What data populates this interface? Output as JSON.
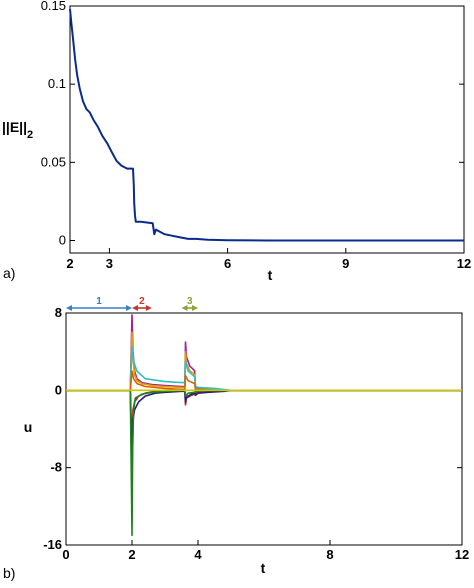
{
  "chart_data": [
    {
      "panel_label": "a)",
      "type": "line",
      "xlabel": "t",
      "ylabel_base": "||E||",
      "ylabel_sub": "2",
      "xlim": [
        2,
        12
      ],
      "ylim": [
        -0.008,
        0.15
      ],
      "xticks": [
        2,
        3,
        6,
        9,
        12
      ],
      "xtick_labels": [
        "2",
        "3",
        "6",
        "9",
        "12"
      ],
      "yticks": [
        0,
        0.05,
        0.1,
        0.15
      ],
      "ytick_labels": [
        "0",
        "0.05",
        "0.1",
        "0.15"
      ],
      "color": "#0a2a8c",
      "series": [
        {
          "x": [
            2.0,
            2.03,
            2.08,
            2.13,
            2.18,
            2.25,
            2.33,
            2.42,
            2.5,
            2.6,
            2.7,
            2.82,
            2.95,
            3.05,
            3.18,
            3.3,
            3.45,
            3.6,
            3.62,
            3.63,
            3.65,
            3.67,
            3.7,
            3.8,
            4.1,
            4.14,
            4.18,
            4.25,
            4.4,
            4.6,
            4.8,
            5.0,
            5.2,
            5.5,
            6.0,
            7.0,
            8.0,
            9.0,
            10.0,
            11.0,
            12.0
          ],
          "y": [
            0.148,
            0.14,
            0.128,
            0.116,
            0.106,
            0.097,
            0.089,
            0.084,
            0.082,
            0.077,
            0.073,
            0.067,
            0.062,
            0.057,
            0.051,
            0.048,
            0.046,
            0.046,
            0.035,
            0.024,
            0.016,
            0.012,
            0.012,
            0.012,
            0.011,
            0.004,
            0.007,
            0.006,
            0.004,
            0.003,
            0.002,
            0.001,
            0.001,
            0.0005,
            0.0002,
            0.0,
            0.0,
            0.0,
            0.0,
            0.0,
            0.0
          ]
        }
      ]
    },
    {
      "panel_label": "b)",
      "type": "line",
      "xlabel": "t",
      "ylabel": "u",
      "xlim": [
        0,
        12
      ],
      "ylim": [
        -16,
        8
      ],
      "xticks": [
        0,
        2,
        4,
        8,
        12
      ],
      "xtick_labels": [
        "0",
        "2",
        "4",
        "8",
        "12"
      ],
      "yticks": [
        8,
        0,
        -8,
        -16
      ],
      "ytick_labels": [
        "8",
        "0",
        "-8",
        "-16"
      ],
      "intervals": [
        {
          "label": "1",
          "from": 0.0,
          "to": 2.0,
          "color": "#3a7fc4"
        },
        {
          "label": "2",
          "from": 2.0,
          "to": 2.6,
          "color": "#c0392b"
        },
        {
          "label": "3",
          "from": 3.5,
          "to": 4.0,
          "color": "#8aa33a"
        }
      ],
      "baseline_color": "#c8c800",
      "series": [
        {
          "color": "#a020a0",
          "x": [
            0,
            1.95,
            2.0,
            2.03,
            2.08,
            2.15,
            2.3,
            2.6,
            3.0,
            3.5,
            3.6,
            3.62,
            3.65,
            3.75,
            3.85,
            3.9,
            3.92,
            4.0,
            4.3,
            4.8,
            5.0,
            12
          ],
          "y": [
            0,
            0,
            7.8,
            4.0,
            2.0,
            1.2,
            0.8,
            0.6,
            0.5,
            0.4,
            0.4,
            5.0,
            3.5,
            2.5,
            2.2,
            2.0,
            0.3,
            0.2,
            0.1,
            0.0,
            0.0,
            0.0
          ]
        },
        {
          "color": "#e0a000",
          "x": [
            0,
            1.95,
            2.0,
            2.03,
            2.08,
            2.15,
            2.3,
            2.6,
            3.0,
            3.5,
            3.6,
            3.62,
            3.65,
            3.75,
            3.85,
            3.9,
            3.92,
            4.0,
            4.3,
            4.8,
            5.0,
            12
          ],
          "y": [
            0,
            0,
            6.0,
            3.2,
            1.6,
            1.0,
            0.7,
            0.5,
            0.4,
            0.3,
            0.3,
            4.0,
            2.8,
            2.0,
            1.8,
            1.6,
            0.2,
            0.1,
            0.1,
            0.0,
            0.0,
            0.0
          ]
        },
        {
          "color": "#30c0c0",
          "x": [
            0,
            1.95,
            2.0,
            2.05,
            2.15,
            2.4,
            3.0,
            3.5,
            3.6,
            3.62,
            3.7,
            3.9,
            3.92,
            4.0,
            4.5,
            5.0,
            12
          ],
          "y": [
            0,
            0,
            4.5,
            3.0,
            2.0,
            1.2,
            0.9,
            0.8,
            0.8,
            3.0,
            2.0,
            1.4,
            0.4,
            0.3,
            0.2,
            0.0,
            0.0
          ]
        },
        {
          "color": "#c02020",
          "x": [
            0,
            1.95,
            2.0,
            2.03,
            2.08,
            2.2,
            2.4,
            2.7,
            3.0,
            3.5,
            3.6,
            3.62,
            3.65,
            3.8,
            3.9,
            3.92,
            4.0,
            4.3,
            4.8,
            5.0,
            12
          ],
          "y": [
            0,
            0,
            -6.0,
            -2.0,
            -1.2,
            -0.6,
            -0.3,
            -0.1,
            0.0,
            0.0,
            0.0,
            -1.5,
            -0.8,
            -0.5,
            -0.4,
            -0.3,
            -0.2,
            -0.1,
            0.0,
            0.0,
            0.0
          ]
        },
        {
          "color": "#202080",
          "x": [
            0,
            1.95,
            2.0,
            2.03,
            2.08,
            2.2,
            2.4,
            2.7,
            3.0,
            3.5,
            3.6,
            3.62,
            3.65,
            3.8,
            3.9,
            3.92,
            4.0,
            4.3,
            4.8,
            5.0,
            12
          ],
          "y": [
            0,
            0,
            -8.5,
            -3.0,
            -2.0,
            -1.2,
            -0.6,
            -0.3,
            -0.2,
            -0.1,
            -0.1,
            -1.2,
            -0.7,
            -0.4,
            -0.3,
            -0.5,
            -0.3,
            -0.2,
            -0.1,
            0.0,
            0.0
          ]
        },
        {
          "color": "#208020",
          "x": [
            0,
            1.95,
            2.0,
            2.02,
            2.05,
            2.1,
            2.3,
            2.6,
            3.0,
            3.5,
            3.6,
            3.62,
            3.7,
            3.9,
            3.92,
            4.0,
            4.4,
            5.0,
            12
          ],
          "y": [
            0,
            0,
            -15.0,
            -6.0,
            -2.0,
            -0.8,
            -0.4,
            -0.2,
            -0.1,
            0.0,
            0.0,
            -0.6,
            -0.3,
            -0.2,
            -0.1,
            -0.1,
            0.0,
            0.0,
            0.0
          ]
        },
        {
          "color": "#e06000",
          "x": [
            0,
            1.95,
            2.0,
            2.05,
            2.15,
            2.4,
            3.0,
            3.5,
            3.6,
            3.62,
            3.7,
            3.9,
            3.92,
            4.0,
            4.5,
            5.0,
            12
          ],
          "y": [
            0,
            0,
            2.0,
            1.2,
            0.7,
            0.4,
            0.2,
            0.1,
            0.1,
            1.5,
            1.0,
            0.7,
            0.1,
            0.1,
            0.0,
            0.0,
            0.0
          ]
        },
        {
          "color": "#c8c800",
          "x": [
            0,
            12
          ],
          "y": [
            0,
            0
          ]
        }
      ]
    }
  ]
}
